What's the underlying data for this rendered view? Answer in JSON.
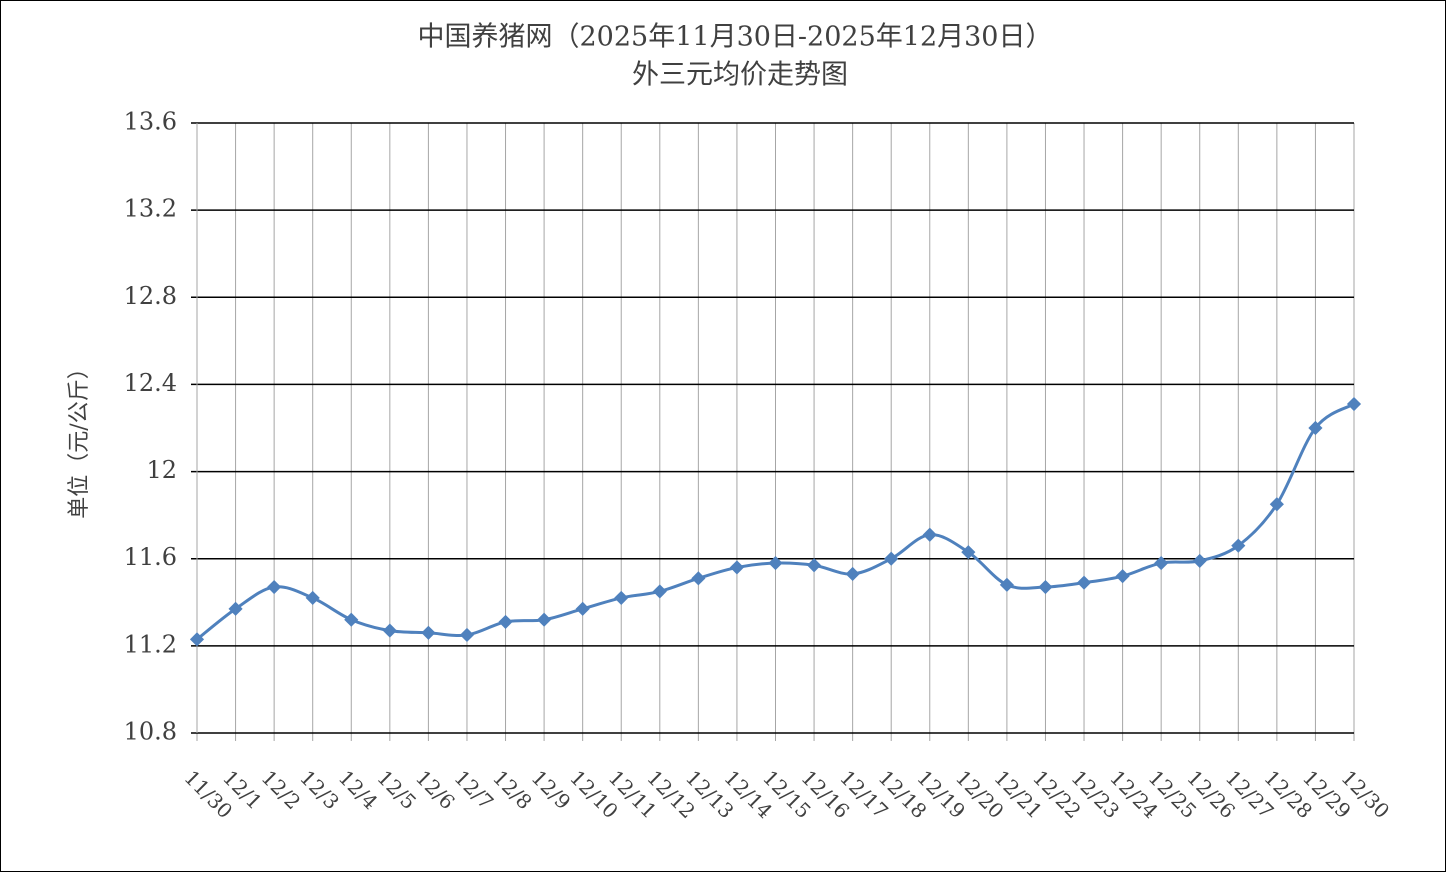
{
  "chart_data": {
    "type": "line",
    "title": "中国养猪网（2025年11月30日-2025年12月30日）",
    "subtitle": "外三元均价走势图",
    "y_label": "单位（元/公斤）",
    "categories": [
      "11/30",
      "12/1",
      "12/2",
      "12/3",
      "12/4",
      "12/5",
      "12/6",
      "12/7",
      "12/8",
      "12/9",
      "12/10",
      "12/11",
      "12/12",
      "12/13",
      "12/14",
      "12/15",
      "12/16",
      "12/17",
      "12/18",
      "12/19",
      "12/20",
      "12/21",
      "12/22",
      "12/23",
      "12/24",
      "12/25",
      "12/26",
      "12/27",
      "12/28",
      "12/29",
      "12/30"
    ],
    "values": [
      11.23,
      11.37,
      11.47,
      11.42,
      11.32,
      11.27,
      11.26,
      11.25,
      11.31,
      11.32,
      11.37,
      11.42,
      11.45,
      11.51,
      11.56,
      11.58,
      11.57,
      11.53,
      11.6,
      11.71,
      11.63,
      11.48,
      11.47,
      11.49,
      11.52,
      11.58,
      11.59,
      11.66,
      11.85,
      12.2,
      12.31
    ],
    "color": "#4f81bd",
    "ylim": [
      10.8,
      13.6
    ],
    "yticks": [
      10.8,
      11.2,
      11.6,
      12,
      12.4,
      12.8,
      13.2,
      13.6
    ],
    "grid": true
  }
}
